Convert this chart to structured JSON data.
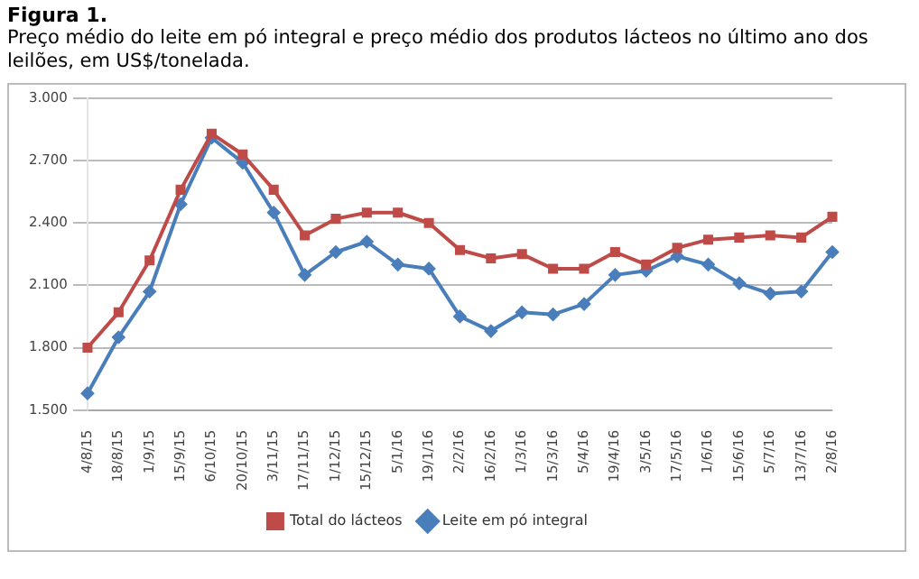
{
  "chart_data": {
    "type": "line",
    "title": "Figura 1.",
    "subtitle": "Preço médio do leite em pó integral e preço médio dos produtos lácteos no último ano dos leilões, em US$/tonelada.",
    "categories": [
      "4/8/15",
      "18/8/15",
      "1/9/15",
      "15/9/15",
      "6/10/15",
      "20/10/15",
      "3/11/15",
      "17/11/15",
      "1/12/15",
      "15/12/15",
      "5/1/16",
      "19/1/16",
      "2/2/16",
      "16/2/16",
      "1/3/16",
      "15/3/16",
      "5/4/16",
      "19/4/16",
      "3/5/16",
      "17/5/16",
      "1/6/16",
      "15/6/16",
      "5/7/16",
      "13/7/16",
      "2/8/16"
    ],
    "series": [
      {
        "name": "Leite em pó integral",
        "color": "#4a7ebb",
        "marker": "diamond",
        "values": [
          1580,
          1850,
          2070,
          2490,
          2810,
          2690,
          2450,
          2150,
          2260,
          2310,
          2200,
          2180,
          1950,
          1880,
          1970,
          1960,
          2010,
          2150,
          2170,
          2240,
          2200,
          2110,
          2060,
          2070,
          2260
        ]
      },
      {
        "name": "Total do lácteos",
        "color": "#be4b48",
        "marker": "square",
        "values": [
          1800,
          1970,
          2220,
          2560,
          2830,
          2730,
          2560,
          2340,
          2420,
          2450,
          2450,
          2400,
          2270,
          2230,
          2250,
          2180,
          2180,
          2260,
          2200,
          2280,
          2320,
          2330,
          2340,
          2330,
          2430
        ]
      }
    ],
    "ylim": [
      1500,
      3000
    ],
    "yticks": [
      {
        "value": 1500,
        "label": "1.500"
      },
      {
        "value": 1800,
        "label": "1.800"
      },
      {
        "value": 2100,
        "label": "2.100"
      },
      {
        "value": 2400,
        "label": "2.400"
      },
      {
        "value": 2700,
        "label": "2.700"
      },
      {
        "value": 3000,
        "label": "3.000"
      }
    ],
    "grid": "y",
    "legend": "bottom",
    "line_style": "solid"
  }
}
